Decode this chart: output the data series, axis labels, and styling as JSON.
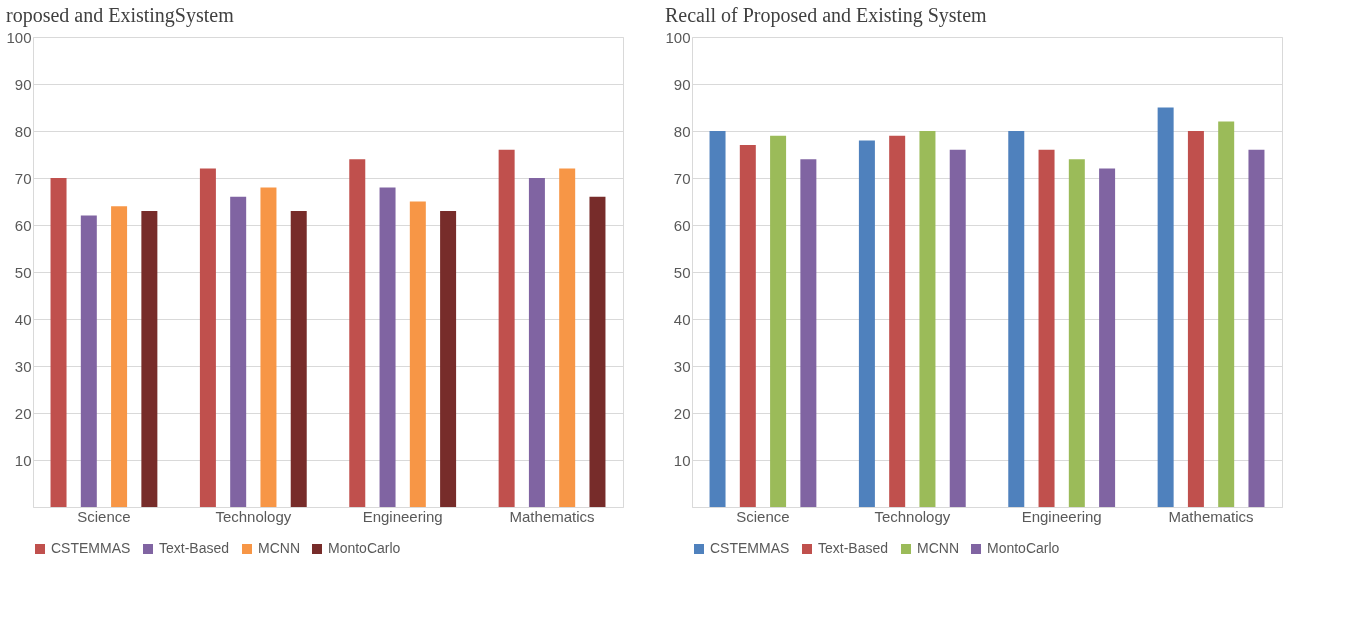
{
  "chart_data": [
    {
      "type": "bar",
      "title": "roposed and ExistingSystem",
      "categories": [
        "Science",
        "Technology",
        "Engineering",
        "Mathematics"
      ],
      "series": [
        {
          "name": "CSTEMMAS",
          "color": "#c0504d",
          "values": [
            70,
            72,
            74,
            76
          ]
        },
        {
          "name": "Text-Based",
          "color": "#8064a2",
          "values": [
            62,
            66,
            68,
            70
          ]
        },
        {
          "name": "MCNN",
          "color": "#f79646",
          "values": [
            64,
            68,
            65,
            72
          ]
        },
        {
          "name": "MontoCarlo",
          "color": "#772c2a",
          "values": [
            63,
            63,
            63,
            66
          ]
        }
      ],
      "ylim": [
        0,
        100
      ],
      "yticks": [
        10,
        20,
        30,
        40,
        50,
        60,
        70,
        80,
        90,
        100
      ],
      "grid": "y",
      "legend": "bottom"
    },
    {
      "type": "bar",
      "title": "Recall of Proposed and Existing System",
      "categories": [
        "Science",
        "Technology",
        "Engineering",
        "Mathematics"
      ],
      "series": [
        {
          "name": "CSTEMMAS",
          "color": "#4f81bd",
          "values": [
            80,
            78,
            80,
            85
          ]
        },
        {
          "name": "Text-Based",
          "color": "#c0504d",
          "values": [
            77,
            79,
            76,
            80
          ]
        },
        {
          "name": "MCNN",
          "color": "#9bbb59",
          "values": [
            79,
            80,
            74,
            82
          ]
        },
        {
          "name": "MontoCarlo",
          "color": "#8064a2",
          "values": [
            74,
            76,
            72,
            76
          ]
        }
      ],
      "ylim": [
        0,
        100
      ],
      "yticks": [
        10,
        20,
        30,
        40,
        50,
        60,
        70,
        80,
        90,
        100
      ],
      "grid": "y",
      "legend": "bottom"
    }
  ]
}
